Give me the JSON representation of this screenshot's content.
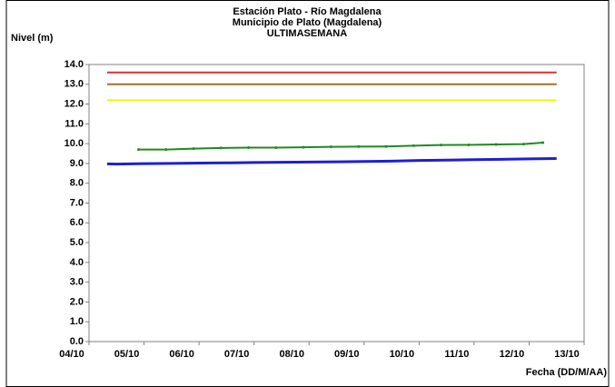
{
  "chart_data": {
    "type": "line",
    "title": "Estación Plato - Río Magdalena",
    "subtitle": "Municipio de Plato (Magdalena)",
    "subtitle2": "ULTIMASEMANA",
    "y_label": "Nivel (m)",
    "x_label": "Fecha (DD/M/AA)",
    "xlim": [
      0,
      9
    ],
    "xticks": [
      {
        "value": 0,
        "label": "04/10"
      },
      {
        "value": 1,
        "label": "05/10"
      },
      {
        "value": 2,
        "label": "06/10"
      },
      {
        "value": 3,
        "label": "07/10"
      },
      {
        "value": 4,
        "label": "08/10"
      },
      {
        "value": 5,
        "label": "09/10"
      },
      {
        "value": 6,
        "label": "10/10"
      },
      {
        "value": 7,
        "label": "11/10"
      },
      {
        "value": 8,
        "label": "12/10"
      },
      {
        "value": 9,
        "label": "13/10"
      }
    ],
    "ylim": [
      0,
      14
    ],
    "yticks": [
      {
        "value": 0,
        "label": "0.0"
      },
      {
        "value": 1,
        "label": "1.0"
      },
      {
        "value": 2,
        "label": "2.0"
      },
      {
        "value": 3,
        "label": "3.0"
      },
      {
        "value": 4,
        "label": "4.0"
      },
      {
        "value": 5,
        "label": "5.0"
      },
      {
        "value": 6,
        "label": "6.0"
      },
      {
        "value": 7,
        "label": "7.0"
      },
      {
        "value": 8,
        "label": "8.0"
      },
      {
        "value": 9,
        "label": "9.0"
      },
      {
        "value": 10,
        "label": "10.0"
      },
      {
        "value": 11,
        "label": "11.0"
      },
      {
        "value": 12,
        "label": "12.0"
      },
      {
        "value": 13,
        "label": "13.0"
      },
      {
        "value": 14,
        "label": "14.0"
      }
    ],
    "grid": false,
    "series": [
      {
        "color": "#e03030",
        "x": [
          0.33,
          8.5
        ],
        "values": [
          13.6,
          13.6
        ]
      },
      {
        "color": "#a0702a",
        "x": [
          0.33,
          8.5
        ],
        "values": [
          13.0,
          13.0
        ]
      },
      {
        "color": "#f5f500",
        "x": [
          0.33,
          8.5
        ],
        "values": [
          12.2,
          12.2
        ]
      },
      {
        "color": "#1f1fd0",
        "width": 3,
        "x": [
          0.33,
          0.5,
          1,
          1.5,
          2,
          2.5,
          3,
          3.5,
          4,
          4.5,
          5,
          5.5,
          6,
          6.5,
          7,
          7.5,
          8,
          8.5
        ],
        "values": [
          8.98,
          8.97,
          8.99,
          9.0,
          9.02,
          9.03,
          9.05,
          9.06,
          9.07,
          9.08,
          9.1,
          9.12,
          9.15,
          9.17,
          9.19,
          9.21,
          9.23,
          9.25
        ]
      },
      {
        "color": "#1f8a1f",
        "markers": true,
        "x": [
          0.9,
          1.4,
          1.9,
          2.4,
          2.9,
          3.4,
          3.9,
          4.4,
          4.9,
          5.4,
          5.9,
          6.4,
          6.9,
          7.4,
          7.9,
          8.25
        ],
        "values": [
          9.7,
          9.7,
          9.75,
          9.78,
          9.8,
          9.8,
          9.82,
          9.84,
          9.85,
          9.86,
          9.9,
          9.93,
          9.94,
          9.96,
          9.98,
          10.05
        ]
      }
    ]
  }
}
